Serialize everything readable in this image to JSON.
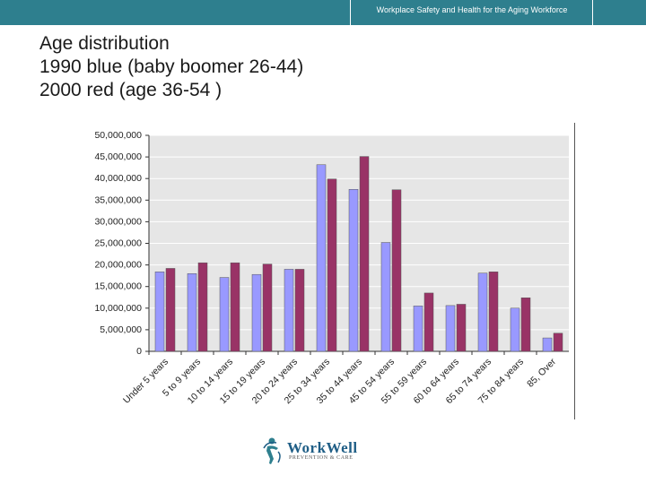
{
  "header": {
    "text": "Workplace Safety and Health for the Aging Workforce"
  },
  "title": {
    "line1": "Age distribution",
    "line2": "1990 blue (baby boomer 26-44)",
    "line3": "2000 red (age 36-54 )"
  },
  "logo": {
    "word": "WorkWell",
    "sub": "PREVENTION & CARE"
  },
  "colors": {
    "accent": "#2e7f8e",
    "series1990": "#9999ff",
    "series2000": "#993366",
    "plot_bg": "#e6e6e6"
  },
  "chart_data": {
    "type": "bar",
    "categories": [
      "Under 5 years",
      "5 to 9 years",
      "10 to 14 years",
      "15 to 19 years",
      "20 to 24 years",
      "25 to 34 years",
      "35 to 44 years",
      "45 to 54 years",
      "55 to 59 years",
      "60 to 64 years",
      "65 to 74 years",
      "75 to 84 years",
      "85, Over"
    ],
    "series": [
      {
        "name": "1990",
        "values": [
          18400000,
          18000000,
          17100000,
          17800000,
          19000000,
          43200000,
          37500000,
          25200000,
          10500000,
          10600000,
          18100000,
          10000000,
          3100000
        ]
      },
      {
        "name": "2000",
        "values": [
          19200000,
          20500000,
          20500000,
          20200000,
          19000000,
          39900000,
          45100000,
          37400000,
          13500000,
          10900000,
          18400000,
          12400000,
          4200000
        ]
      }
    ],
    "yticks": [
      "50,000,000",
      "45,000,000",
      "40,000,000",
      "35,000,000",
      "30,000,000",
      "25,000,000",
      "20,000,000",
      "15,000,000",
      "10,000,000",
      "5,000,000",
      "0"
    ],
    "ylim": [
      0,
      50000000
    ],
    "title": "",
    "xlabel": "",
    "ylabel": ""
  }
}
